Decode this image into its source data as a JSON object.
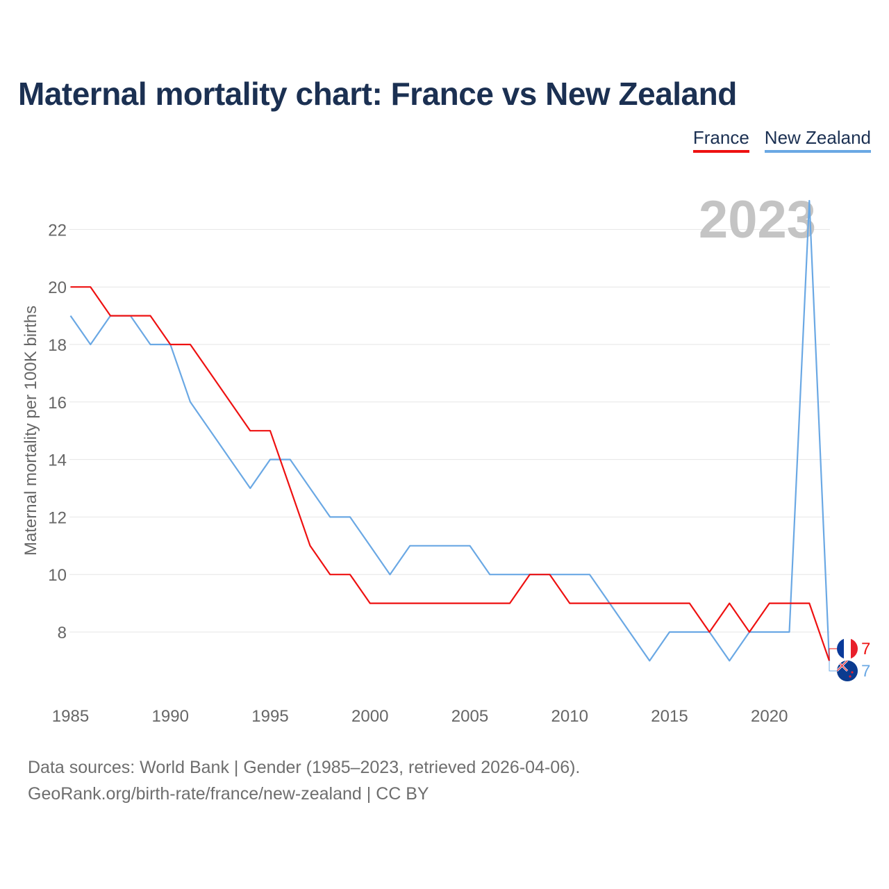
{
  "title": "Maternal mortality chart: France vs New Zealand",
  "legend": {
    "france": "France",
    "new_zealand": "New Zealand"
  },
  "year_label": "2023",
  "footer": {
    "line1": "Data sources: World Bank | Gender (1985–2023, retrieved 2026-04-06).",
    "line2": "GeoRank.org/birth-rate/france/new-zealand | CC BY"
  },
  "colors": {
    "france": "#ee1111",
    "new_zealand": "#6aa8e4",
    "title": "#1b3052",
    "year": "#c4c4c4"
  },
  "chart_data": {
    "type": "line",
    "title": "Maternal mortality chart: France vs New Zealand",
    "xlabel": "",
    "ylabel": "Maternal mortality per 100K births",
    "xlim": [
      1985,
      2023
    ],
    "ylim": [
      6,
      23
    ],
    "xticks": [
      1985,
      1990,
      1995,
      2000,
      2005,
      2010,
      2015,
      2020
    ],
    "yticks": [
      8,
      10,
      12,
      14,
      16,
      18,
      20,
      22
    ],
    "grid": true,
    "legend_position": "top-right",
    "x": [
      1985,
      1986,
      1987,
      1988,
      1989,
      1990,
      1991,
      1992,
      1993,
      1994,
      1995,
      1996,
      1997,
      1998,
      1999,
      2000,
      2001,
      2002,
      2003,
      2004,
      2005,
      2006,
      2007,
      2008,
      2009,
      2010,
      2011,
      2012,
      2013,
      2014,
      2015,
      2016,
      2017,
      2018,
      2019,
      2020,
      2021,
      2022,
      2023
    ],
    "series": [
      {
        "name": "France",
        "end_label": "7",
        "values": [
          20,
          20,
          19,
          19,
          19,
          18,
          18,
          17,
          16,
          15,
          15,
          13,
          11,
          10,
          10,
          9,
          9,
          9,
          9,
          9,
          9,
          9,
          9,
          10,
          10,
          9,
          9,
          9,
          9,
          9,
          9,
          9,
          8,
          9,
          8,
          9,
          9,
          9,
          7
        ]
      },
      {
        "name": "New Zealand",
        "end_label": "7",
        "values": [
          19,
          18,
          19,
          19,
          18,
          18,
          16,
          15,
          14,
          13,
          14,
          14,
          13,
          12,
          12,
          11,
          10,
          11,
          11,
          11,
          11,
          10,
          10,
          10,
          10,
          10,
          10,
          9,
          8,
          7,
          8,
          8,
          8,
          7,
          8,
          8,
          8,
          23,
          7
        ]
      }
    ]
  }
}
